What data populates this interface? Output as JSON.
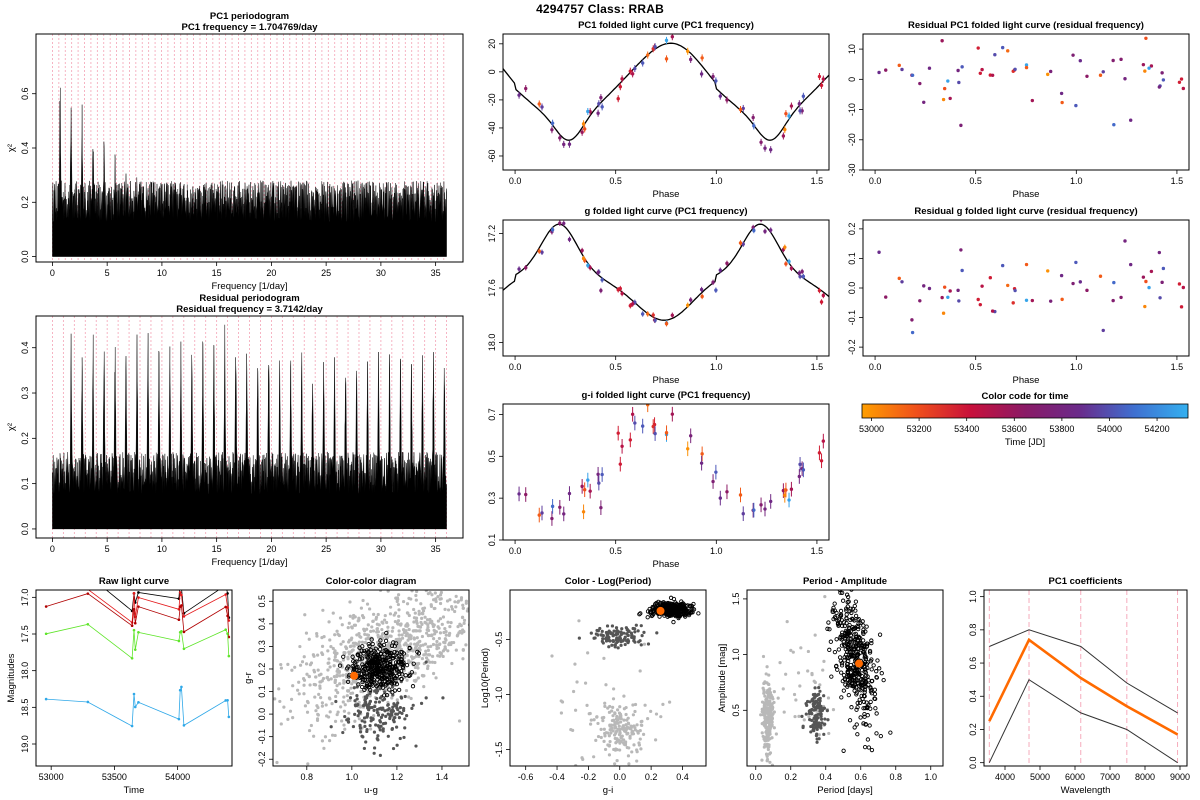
{
  "header": {
    "title": "4294757     Class: RRAB"
  },
  "colors": {
    "black": "#000000",
    "pink": "#f4a3b5",
    "orange": "#ff6a00",
    "grey": "#b8b8b8",
    "darkgrey": "#555555",
    "raw_black": "#000000",
    "raw_red": "#e41a1c",
    "raw_dred": "#b00000",
    "raw_green": "#5fe52a",
    "raw_blue": "#2fa8e8"
  },
  "colorbar": {
    "title": "Color code for time",
    "xlabel": "Time [JD]",
    "ticks": [
      "53000",
      "53200",
      "53400",
      "53600",
      "53800",
      "54000",
      "54200"
    ],
    "tick_values": [
      53000,
      53200,
      53400,
      53600,
      53800,
      54000,
      54200
    ],
    "range": [
      52960,
      54330
    ],
    "stops": [
      "#ff9f00",
      "#f0501b",
      "#c8103b",
      "#8a1a66",
      "#6a2a8a",
      "#3f6fd0",
      "#34b0f0"
    ]
  },
  "chart_data": [
    {
      "id": "pc1_periodogram",
      "type": "line",
      "title": "PC1 periodogram",
      "subtitle": "PC1 frequency = 1.704769/day",
      "xlabel": "Frequency [1/day]",
      "ylabel": "χ²",
      "xlim": [
        -1.5,
        37.5
      ],
      "ylim": [
        -0.02,
        0.82
      ],
      "xticks": [
        0,
        5,
        10,
        15,
        20,
        25,
        30,
        35
      ],
      "yticks": [
        0.0,
        0.2,
        0.4,
        0.6
      ],
      "ytick_labels": [
        "0.0",
        "0.2",
        "0.4",
        "0.6"
      ],
      "peak_frequency": 1.704769,
      "peak_height": 0.76,
      "noise_floor": 0.28,
      "decay_floor": 0.25,
      "marker_lines_spacing": 0.586
    },
    {
      "id": "resid_periodogram",
      "type": "line",
      "title": "Residual periodogram",
      "subtitle": "Residual frequency = 3.7142/day",
      "xlabel": "Frequency [1/day]",
      "ylabel": "χ²",
      "xlim": [
        -1.5,
        37.5
      ],
      "ylim": [
        -0.02,
        0.47
      ],
      "xticks": [
        0,
        5,
        10,
        15,
        20,
        25,
        30,
        35
      ],
      "yticks": [
        0.0,
        0.1,
        0.2,
        0.3,
        0.4
      ],
      "ytick_labels": [
        "0.0",
        "0.1",
        "0.2",
        "0.3",
        "0.4"
      ],
      "peak_frequency": 3.7142,
      "peak_height": 0.46,
      "noise_floor": 0.17,
      "decay_floor": 0.4,
      "marker_lines_spacing": 1.0
    },
    {
      "id": "pc1_folded",
      "type": "scatter",
      "title": "PC1 folded light curve (PC1 frequency)",
      "xlabel": "Phase",
      "ylabel": "",
      "xlim": [
        -0.06,
        1.56
      ],
      "ylim": [
        -70,
        27
      ],
      "xticks": [
        0,
        0.5,
        1,
        1.5
      ],
      "xtick_labels": [
        "0.0",
        "0.5",
        "1.0",
        "1.5"
      ],
      "yticks": [
        20,
        0,
        -20,
        -40,
        -60
      ],
      "ytick_labels": [
        "20",
        "0",
        "-20",
        "-40",
        "-60"
      ],
      "curve": "pc1"
    },
    {
      "id": "resid_pc1_folded",
      "type": "scatter",
      "title": "Residual PC1 folded light curve (residual frequency)",
      "xlabel": "Phase",
      "xlim": [
        -0.06,
        1.56
      ],
      "ylim": [
        -30,
        15
      ],
      "xticks": [
        0,
        0.5,
        1,
        1.5
      ],
      "xtick_labels": [
        "0.0",
        "0.5",
        "1.0",
        "1.5"
      ],
      "yticks": [
        10,
        0,
        -10,
        -20,
        -30
      ],
      "ytick_labels": [
        "10",
        "0",
        "-10",
        "-20",
        "-30"
      ]
    },
    {
      "id": "g_folded",
      "type": "scatter",
      "title": "g folded light curve (PC1 frequency)",
      "xlabel": "Phase",
      "xlim": [
        -0.06,
        1.56
      ],
      "ylim": [
        18.1,
        17.1
      ],
      "xticks": [
        0,
        0.5,
        1,
        1.5
      ],
      "xtick_labels": [
        "0.0",
        "0.5",
        "1.0",
        "1.5"
      ],
      "yticks": [
        17.2,
        17.6,
        18.0
      ],
      "ytick_labels": [
        "17.2",
        "17.6",
        "18.0"
      ],
      "curve": "g"
    },
    {
      "id": "resid_g_folded",
      "type": "scatter",
      "title": "Residual g folded light curve (residual frequency)",
      "xlabel": "Phase",
      "xlim": [
        -0.06,
        1.56
      ],
      "ylim": [
        -0.23,
        0.23
      ],
      "xticks": [
        0,
        0.5,
        1,
        1.5
      ],
      "xtick_labels": [
        "0.0",
        "0.5",
        "1.0",
        "1.5"
      ],
      "yticks": [
        0.2,
        0.1,
        0.0,
        -0.1,
        -0.2
      ],
      "ytick_labels": [
        "0.2",
        "0.1",
        "0.0",
        "-0.1",
        "-0.2"
      ]
    },
    {
      "id": "gi_folded",
      "type": "scatter",
      "title": "g-i folded light curve (PC1 frequency)",
      "xlabel": "Phase",
      "xlim": [
        -0.06,
        1.56
      ],
      "ylim": [
        0.1,
        0.75
      ],
      "xticks": [
        0,
        0.5,
        1,
        1.5
      ],
      "xtick_labels": [
        "0.0",
        "0.5",
        "1.0",
        "1.5"
      ],
      "yticks": [
        0.7,
        0.5,
        0.3,
        0.1
      ],
      "ytick_labels": [
        "0.7",
        "0.5",
        "0.3",
        "0.1"
      ]
    },
    {
      "id": "raw_lc",
      "type": "line",
      "title": "Raw light curve",
      "xlabel": "Time",
      "ylabel": "Magnitudes",
      "xlim": [
        52880,
        54430
      ],
      "ylim": [
        19.3,
        16.9
      ],
      "xticks": [
        53000,
        53500,
        54000
      ],
      "xtick_labels": [
        "53000",
        "53500",
        "54000"
      ],
      "yticks": [
        17.0,
        17.5,
        18.0,
        18.5,
        19.0
      ],
      "ytick_labels": [
        "17.0",
        "17.5",
        "18.0",
        "18.5",
        "19.0"
      ],
      "series": [
        {
          "name": "u-black",
          "offset": 0.0
        },
        {
          "name": "g-red",
          "offset": 0.12
        },
        {
          "name": "r-dred",
          "offset": 0.26
        },
        {
          "name": "i-green",
          "offset": 0.6
        },
        {
          "name": "z-blue",
          "offset": 1.55
        }
      ]
    },
    {
      "id": "color_color",
      "type": "scatter",
      "title": "Color-color diagram",
      "xlabel": "u-g",
      "ylabel": "g-r",
      "xlim": [
        0.65,
        1.52
      ],
      "ylim": [
        -0.23,
        0.55
      ],
      "xticks": [
        0.8,
        1.0,
        1.2,
        1.4
      ],
      "xtick_labels": [
        "0.8",
        "1.0",
        "1.2",
        "1.4"
      ],
      "yticks": [
        0.5,
        0.4,
        0.3,
        0.2,
        0.1,
        0.0,
        -0.1,
        -0.2
      ],
      "ytick_labels": [
        "0.5",
        "0.4",
        "0.3",
        "0.2",
        "0.1",
        "0.0",
        "-0.1",
        "-0.2"
      ],
      "highlight": [
        1.01,
        0.17
      ]
    },
    {
      "id": "color_logp",
      "type": "scatter",
      "title": "Color - Log(Period)",
      "xlabel": "g-i",
      "ylabel": "Log10(Period)",
      "xlim": [
        -0.7,
        0.55
      ],
      "ylim": [
        -1.65,
        -0.05
      ],
      "xticks": [
        -0.6,
        -0.4,
        -0.2,
        0.0,
        0.2,
        0.4
      ],
      "xtick_labels": [
        "-0.6",
        "-0.4",
        "-0.2",
        "0.0",
        "0.2",
        "0.4"
      ],
      "yticks": [
        -0.5,
        -1.0,
        -1.5
      ],
      "ytick_labels": [
        "-0.5",
        "-1.0",
        "-1.5"
      ],
      "highlight": [
        0.26,
        -0.24
      ]
    },
    {
      "id": "period_amp",
      "type": "scatter",
      "title": "Period - Amplitude",
      "xlabel": "Period [days]",
      "ylabel": "Amplitude [mag]",
      "xlim": [
        -0.05,
        1.07
      ],
      "ylim": [
        0.0,
        1.58
      ],
      "xticks": [
        0.0,
        0.2,
        0.4,
        0.6,
        0.8,
        1.0
      ],
      "xtick_labels": [
        "0.0",
        "0.2",
        "0.4",
        "0.6",
        "0.8",
        "1.0"
      ],
      "yticks": [
        0.5,
        1.0,
        1.5
      ],
      "ytick_labels": [
        "0.5",
        "1.0",
        "1.5"
      ],
      "highlight": [
        0.59,
        0.92
      ]
    },
    {
      "id": "pc1_coeffs",
      "type": "line",
      "title": "PC1 coefficients",
      "xlabel": "Wavelength",
      "xlim": [
        3400,
        9200
      ],
      "ylim": [
        -0.02,
        1.04
      ],
      "xticks": [
        4000,
        5000,
        6000,
        7000,
        8000,
        9000
      ],
      "xtick_labels": [
        "4000",
        "5000",
        "6000",
        "7000",
        "8000",
        "9000"
      ],
      "yticks": [
        0.0,
        0.2,
        0.4,
        0.6,
        0.8,
        1.0
      ],
      "ytick_labels": [
        "0.0",
        "0.2",
        "0.4",
        "0.6",
        "0.8",
        "1.0"
      ],
      "wavelengths": [
        3551,
        4686,
        6165,
        7481,
        8931
      ],
      "mean": [
        0.25,
        0.74,
        0.51,
        0.34,
        0.17
      ],
      "upper": [
        0.7,
        0.8,
        0.7,
        0.48,
        0.3
      ],
      "lower": [
        0.0,
        0.5,
        0.3,
        0.2,
        0.0
      ]
    }
  ]
}
